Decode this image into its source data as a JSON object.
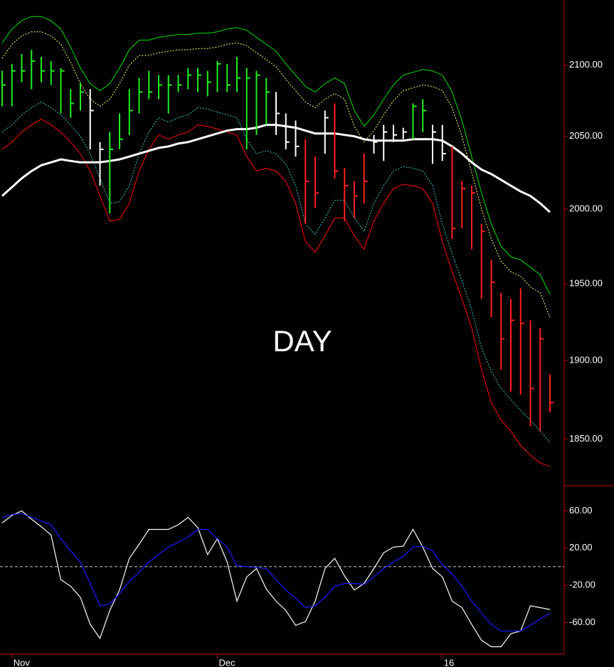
{
  "chart_data": [
    {
      "type": "hlc",
      "annotation": "DAY",
      "log_scale": true,
      "ylim": [
        1821,
        2147
      ],
      "yticks": [
        {
          "value": 1850,
          "label": "1850.00"
        },
        {
          "value": 1900,
          "label": "1900.00"
        },
        {
          "value": 1950,
          "label": "1950.00"
        },
        {
          "value": 2000,
          "label": "2000.00"
        },
        {
          "value": 2050,
          "label": "2050.00"
        },
        {
          "value": 2100,
          "label": "2100.00"
        }
      ],
      "high": [
        2096,
        2101,
        2108,
        2111,
        2106,
        2103,
        2098,
        2083,
        2088,
        2083,
        2046,
        2053,
        2066,
        2083,
        2091,
        2096,
        2093,
        2093,
        2093,
        2098,
        2098,
        2096,
        2103,
        2101,
        2106,
        2098,
        2096,
        2091,
        2081,
        2066,
        2061,
        2048,
        2036,
        2068,
        2073,
        2028,
        2019,
        2038,
        2051,
        2058,
        2058,
        2056,
        2073,
        2076,
        2058,
        2058,
        2043,
        2019,
        2016,
        1990,
        1966,
        1944,
        1940,
        1947,
        1926,
        1921,
        1891
      ],
      "low": [
        2071,
        2071,
        2088,
        2083,
        2088,
        2086,
        2066,
        2063,
        2068,
        2041,
        2016,
        1997,
        2041,
        2051,
        2066,
        2076,
        2076,
        2066,
        2081,
        2083,
        2081,
        2078,
        2081,
        2081,
        2081,
        2041,
        2051,
        2058,
        2051,
        2041,
        2036,
        1990,
        2001,
        2038,
        2021,
        1992,
        1994,
        2004,
        2038,
        2033,
        2046,
        2048,
        2048,
        2053,
        2031,
        2033,
        1980,
        1987,
        1973,
        1940,
        1928,
        1894,
        1880,
        1878,
        1858,
        1855,
        1867
      ],
      "close": [
        2086,
        2096,
        2096,
        2103,
        2096,
        2096,
        2096,
        2073,
        2081,
        2068,
        2041,
        2041,
        2048,
        2068,
        2081,
        2081,
        2086,
        2086,
        2086,
        2093,
        2093,
        2088,
        2101,
        2086,
        2091,
        2091,
        2093,
        2081,
        2066,
        2046,
        2043,
        2019,
        2011,
        2063,
        2026,
        2016,
        2009,
        2019,
        2046,
        2053,
        2051,
        2053,
        2071,
        2068,
        2053,
        2038,
        1987,
        2014,
        2011,
        1985,
        1951,
        1914,
        1926,
        1924,
        1882,
        1914,
        1873
      ],
      "bar_colors": [
        "#22ee22",
        "#22ee22",
        "#22ee22",
        "#22ee22",
        "#22ee22",
        "#22ee22",
        "#22ee22",
        "#22ee22",
        "#22ee22",
        "#ffffff",
        "#ffffff",
        "#22ee22",
        "#22ee22",
        "#22ee22",
        "#22ee22",
        "#22ee22",
        "#22ee22",
        "#22ee22",
        "#22ee22",
        "#22ee22",
        "#22ee22",
        "#22ee22",
        "#22ee22",
        "#22ee22",
        "#22ee22",
        "#22ee22",
        "#22ee22",
        "#22ee22",
        "#ffffff",
        "#ffffff",
        "#ffffff",
        "#ff2020",
        "#ff2020",
        "#ffffff",
        "#ff2020",
        "#ff2020",
        "#ff2020",
        "#ff2020",
        "#ffffff",
        "#ffffff",
        "#ffffff",
        "#ffffff",
        "#22ee22",
        "#22ee22",
        "#ffffff",
        "#ffffff",
        "#ff2020",
        "#ff2020",
        "#ff2020",
        "#ff2020",
        "#ff2020",
        "#ff2020",
        "#ff2020",
        "#ff2020",
        "#ff2020",
        "#ff2020",
        "#ff2020"
      ],
      "series": [
        {
          "color": "#00dd00",
          "dashed": false,
          "width": 1,
          "values": [
            2116,
            2126,
            2132,
            2135,
            2135,
            2132,
            2126,
            2113,
            2098,
            2087,
            2082,
            2087,
            2098,
            2111,
            2118,
            2118,
            2120,
            2121,
            2122,
            2122,
            2123,
            2123,
            2124,
            2126,
            2127,
            2125,
            2120,
            2115,
            2110,
            2101,
            2093,
            2085,
            2081,
            2087,
            2091,
            2087,
            2068,
            2057,
            2065,
            2076,
            2086,
            2093,
            2095,
            2097,
            2096,
            2093,
            2081,
            2061,
            2036,
            2011,
            1990,
            1975,
            1968,
            1966,
            1961,
            1956,
            1943
          ]
        },
        {
          "color": "#ffff66",
          "dashed": true,
          "width": 1,
          "values": [
            2105,
            2115,
            2121,
            2124,
            2124,
            2121,
            2115,
            2102,
            2087,
            2076,
            2071,
            2076,
            2087,
            2100,
            2107,
            2107,
            2109,
            2110,
            2111,
            2111,
            2112,
            2112,
            2113,
            2115,
            2116,
            2114,
            2109,
            2104,
            2099,
            2090,
            2082,
            2074,
            2070,
            2076,
            2080,
            2076,
            2057,
            2046,
            2054,
            2065,
            2075,
            2082,
            2084,
            2086,
            2085,
            2082,
            2070,
            2050,
            2025,
            2000,
            1980,
            1965,
            1958,
            1955,
            1948,
            1944,
            1928
          ]
        },
        {
          "color": "#33cccc",
          "dashed": true,
          "width": 1,
          "values": [
            2053,
            2058,
            2065,
            2070,
            2074,
            2070,
            2065,
            2058,
            2050,
            2038,
            2021,
            2004,
            2005,
            2016,
            2038,
            2053,
            2063,
            2060,
            2063,
            2065,
            2070,
            2069,
            2067,
            2065,
            2063,
            2048,
            2038,
            2040,
            2038,
            2031,
            2016,
            1990,
            1983,
            1994,
            2006,
            2006,
            1994,
            1985,
            2004,
            2016,
            2026,
            2029,
            2028,
            2026,
            2016,
            1990,
            1970,
            1952,
            1933,
            1908,
            1893,
            1882,
            1875,
            1868,
            1862,
            1855,
            1848
          ]
        },
        {
          "color": "#ff0000",
          "dashed": false,
          "width": 1,
          "values": [
            2041,
            2046,
            2053,
            2058,
            2062,
            2058,
            2053,
            2046,
            2038,
            2026,
            2009,
            1992,
            1993,
            2004,
            2026,
            2041,
            2051,
            2048,
            2051,
            2053,
            2058,
            2057,
            2055,
            2053,
            2051,
            2036,
            2026,
            2028,
            2026,
            2019,
            2004,
            1978,
            1971,
            1982,
            1994,
            1994,
            1982,
            1973,
            1992,
            2004,
            2014,
            2017,
            2016,
            2014,
            2004,
            1978,
            1958,
            1940,
            1921,
            1894,
            1873,
            1862,
            1855,
            1846,
            1840,
            1835,
            1833
          ]
        },
        {
          "color": "#ffffff",
          "dashed": false,
          "width": 3,
          "values": [
            2009,
            2015,
            2021,
            2026,
            2030,
            2032,
            2034,
            2033,
            2032,
            2032,
            2032,
            2033,
            2034,
            2036,
            2038,
            2040,
            2042,
            2043,
            2045,
            2046,
            2048,
            2050,
            2052,
            2054,
            2055,
            2055,
            2056,
            2058,
            2058,
            2057,
            2056,
            2054,
            2052,
            2052,
            2052,
            2051,
            2050,
            2048,
            2047,
            2047,
            2047,
            2047,
            2048,
            2048,
            2048,
            2047,
            2043,
            2038,
            2032,
            2027,
            2024,
            2020,
            2016,
            2012,
            2009,
            2004,
            1998
          ]
        }
      ]
    },
    {
      "type": "line",
      "ylim": [
        -94,
        87
      ],
      "reference_line": 0,
      "yticks": [
        {
          "value": -60,
          "label": "-60.00"
        },
        {
          "value": -20,
          "label": "-20.00"
        },
        {
          "value": 20,
          "label": "20.00"
        },
        {
          "value": 60,
          "label": "60.00"
        }
      ],
      "categories": [
        null,
        "Nov",
        null,
        null,
        null,
        null,
        null,
        null,
        null,
        null,
        null,
        null,
        null,
        null,
        null,
        null,
        null,
        null,
        null,
        null,
        null,
        null,
        "Dec",
        null,
        null,
        null,
        null,
        null,
        null,
        null,
        null,
        null,
        null,
        null,
        null,
        null,
        null,
        null,
        null,
        null,
        null,
        null,
        null,
        null,
        null,
        "16",
        null,
        null,
        null,
        null,
        null,
        null,
        null,
        null,
        null,
        null,
        null
      ],
      "series": [
        {
          "color": "#ffffff",
          "values": [
            47,
            55,
            60,
            51,
            43,
            34,
            -14,
            -21,
            -33,
            -62,
            -77,
            -47,
            -25,
            9,
            24,
            40,
            40,
            40,
            45,
            53,
            42,
            13,
            30,
            5,
            -37,
            -11,
            -2,
            -24,
            -37,
            -47,
            -63,
            -59,
            -37,
            -2,
            9,
            -10,
            -25,
            -18,
            -2,
            15,
            21,
            22,
            40,
            21,
            -2,
            -11,
            -37,
            -44,
            -62,
            -79,
            -86,
            -86,
            -72,
            -69,
            -42,
            -44,
            -46
          ]
        },
        {
          "color": "#1a1aff",
          "values": [
            53,
            56,
            57,
            53,
            49,
            45,
            30,
            17,
            5,
            -18,
            -42,
            -40,
            -29,
            -16,
            -6,
            5,
            13,
            21,
            26,
            32,
            40,
            40,
            30,
            21,
            1,
            0,
            -1,
            -2,
            -14,
            -25,
            -34,
            -44,
            -42,
            -33,
            -21,
            -18,
            -18,
            -19,
            -11,
            -2,
            5,
            11,
            21,
            22,
            17,
            2,
            -8,
            -21,
            -37,
            -50,
            -62,
            -69,
            -69,
            -69,
            -63,
            -56,
            -50
          ]
        }
      ]
    }
  ]
}
